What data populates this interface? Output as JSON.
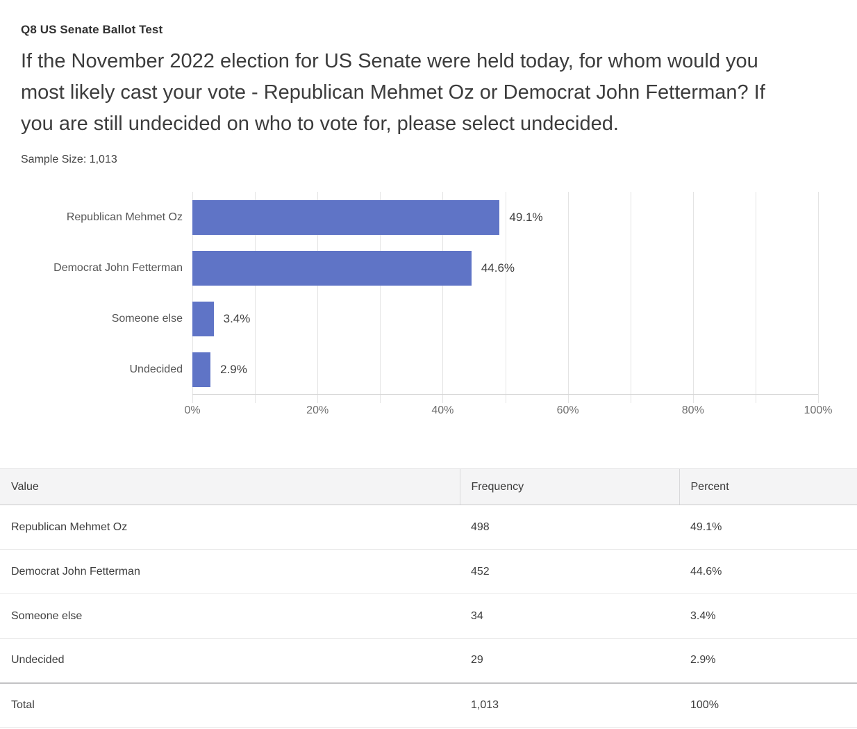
{
  "page": {
    "question_code": "Q8 US Senate Ballot Test",
    "question_lines": [
      "If the November 2022 election for US Senate were held today, for whom would you",
      "most likely cast your vote - Republican Mehmet Oz or Democrat John Fetterman? If",
      "you are still undecided on who to vote for, please select undecided."
    ],
    "sample_size_label": "Sample Size: 1,013"
  },
  "chart_data": {
    "type": "bar",
    "orientation": "horizontal",
    "categories": [
      "Republican Mehmet Oz",
      "Democrat John Fetterman",
      "Someone else",
      "Undecided"
    ],
    "values": [
      49.1,
      44.6,
      3.4,
      2.9
    ],
    "value_labels": [
      "49.1%",
      "44.6%",
      "3.4%",
      "2.9%"
    ],
    "xlabel": "",
    "ylabel": "",
    "title": "",
    "xlim": [
      0,
      100
    ],
    "xticks": [
      0,
      20,
      40,
      60,
      80,
      100
    ],
    "xtick_labels": [
      "0%",
      "20%",
      "40%",
      "60%",
      "80%",
      "100%"
    ],
    "gridline_step": 10,
    "grid": true,
    "legend": false,
    "bar_color": "#5f74c6"
  },
  "table": {
    "headers": [
      "Value",
      "Frequency",
      "Percent"
    ],
    "rows": [
      [
        "Republican Mehmet Oz",
        "498",
        "49.1%"
      ],
      [
        "Democrat John Fetterman",
        "452",
        "44.6%"
      ],
      [
        "Someone else",
        "34",
        "3.4%"
      ],
      [
        "Undecided",
        "29",
        "2.9%"
      ],
      [
        "Total",
        "1,013",
        "100%"
      ]
    ]
  }
}
